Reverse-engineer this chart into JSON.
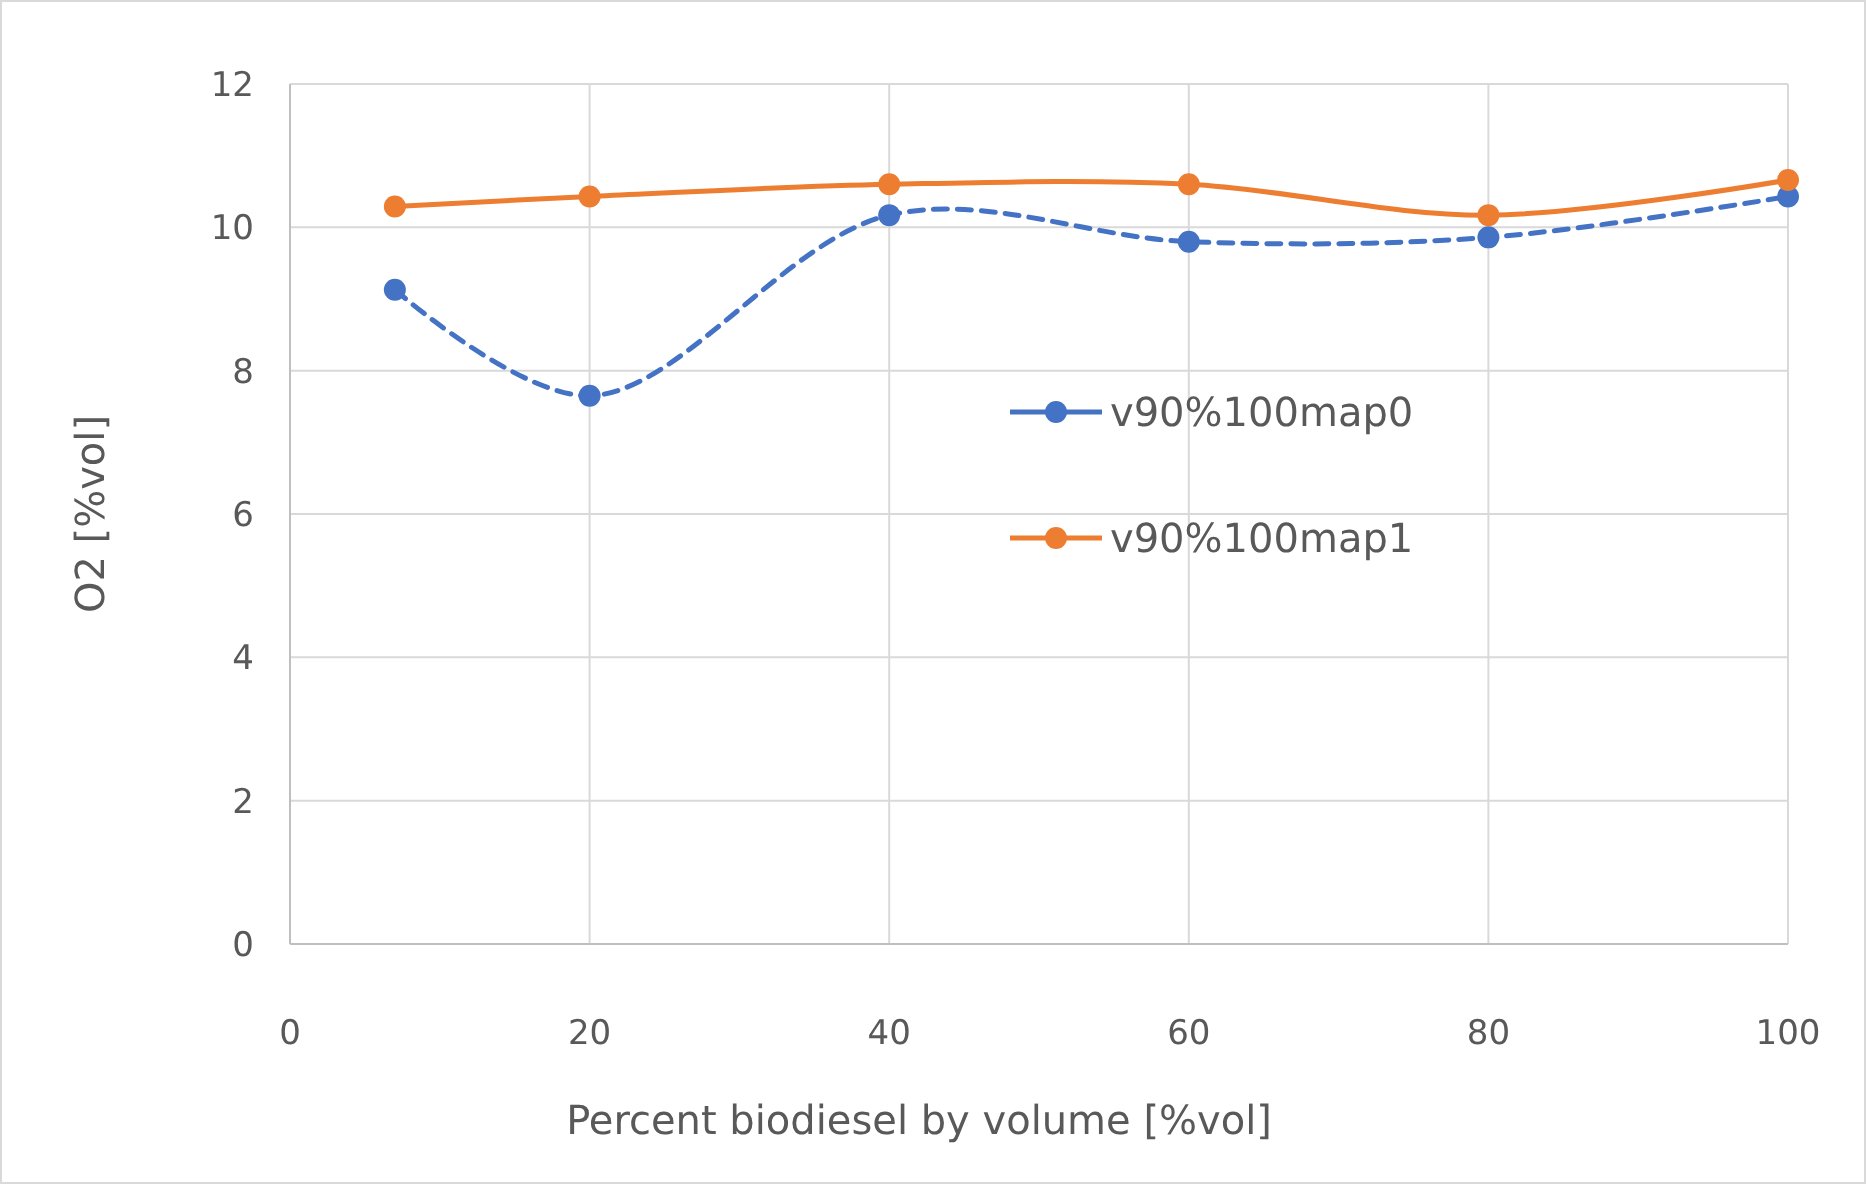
{
  "chart_data": {
    "type": "line",
    "xlabel": "Percent biodiesel by volume [%vol]",
    "ylabel": "O2 [%vol]",
    "x": [
      7,
      20,
      40,
      60,
      80,
      100
    ],
    "series": [
      {
        "name": "v90%100map0",
        "color": "#4472c4",
        "line_style": "dashed",
        "values": [
          9.13,
          7.65,
          10.17,
          9.8,
          9.86,
          10.43
        ]
      },
      {
        "name": "v90%100map1",
        "color": "#ed7d31",
        "line_style": "solid",
        "values": [
          10.29,
          10.43,
          10.6,
          10.6,
          10.17,
          10.66
        ]
      }
    ],
    "xlim": [
      0,
      100
    ],
    "xticks": [
      0,
      20,
      40,
      60,
      80,
      100
    ],
    "ylim": [
      0,
      12
    ],
    "yticks": [
      0,
      2,
      4,
      6,
      8,
      10,
      12
    ],
    "grid": true,
    "legend": "right",
    "marker": "circle"
  }
}
